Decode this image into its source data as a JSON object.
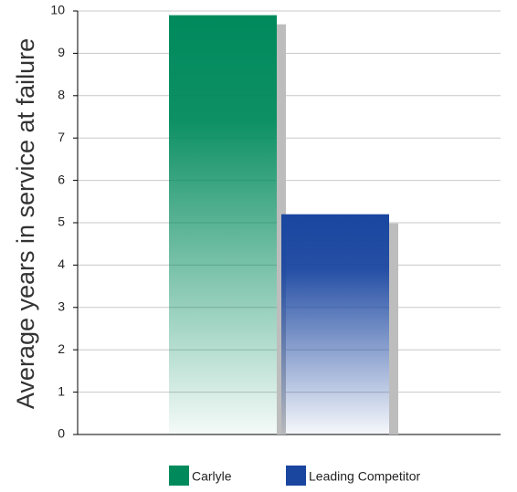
{
  "chart_data": {
    "type": "bar",
    "y_label": "Average years in service at failure",
    "categories": [
      null
    ],
    "series": [
      {
        "name": "Carlyle",
        "color": "#008a5c",
        "values": [
          9.9
        ]
      },
      {
        "name": "Leading Competitor",
        "color": "#1a46a0",
        "values": [
          5.2
        ]
      }
    ],
    "ylim": [
      0,
      10
    ],
    "yticks": [
      0,
      1,
      2,
      3,
      4,
      5,
      6,
      7,
      8,
      9,
      10
    ],
    "grid": true,
    "legend": "bottom"
  }
}
